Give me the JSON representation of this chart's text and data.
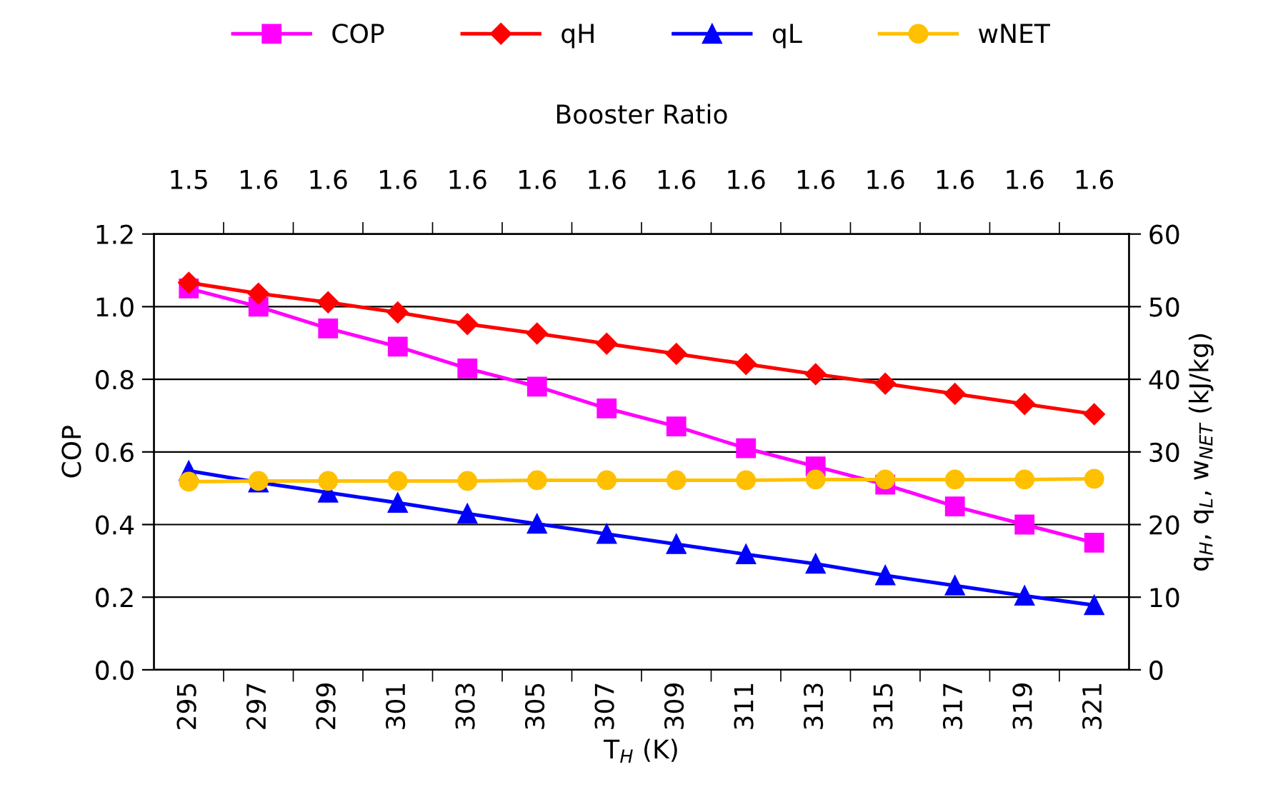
{
  "chart_data": {
    "type": "line",
    "xlabel": "T$_{H}$ (K)",
    "ylabel": "COP",
    "y2label": "q$_{H}$, q$_{L}$, w$_{NET}$ (kJ/kg)",
    "x2label": "Booster Ratio",
    "categories": [
      "295",
      "297",
      "299",
      "301",
      "303",
      "305",
      "307",
      "309",
      "311",
      "313",
      "315",
      "317",
      "319",
      "321"
    ],
    "series": [
      {
        "name": "COP",
        "color": "#ff00ff",
        "marker": "square",
        "values": [
          1.05,
          1.0,
          0.94,
          0.89,
          0.83,
          0.78,
          0.72,
          0.67,
          0.61,
          0.56,
          0.51,
          0.45,
          0.4,
          0.35
        ]
      },
      {
        "name": "qH",
        "color": "#ff0000",
        "marker": "diamond",
        "axis": "y2",
        "values": [
          53.3,
          51.8,
          50.6,
          49.2,
          47.6,
          46.3,
          44.9,
          43.5,
          42.1,
          40.7,
          39.4,
          38.0,
          36.6,
          35.2
        ]
      },
      {
        "name": "qL",
        "color": "#0000ff",
        "marker": "triangle",
        "axis": "y2",
        "values": [
          27.4,
          25.8,
          24.4,
          23.0,
          21.5,
          20.1,
          18.7,
          17.3,
          15.9,
          14.6,
          13.0,
          11.6,
          10.2,
          8.9
        ]
      },
      {
        "name": "wNET",
        "color": "#ffc000",
        "marker": "circle",
        "axis": "y2",
        "values": [
          25.9,
          26.0,
          26.0,
          26.0,
          26.0,
          26.1,
          26.1,
          26.1,
          26.1,
          26.2,
          26.2,
          26.2,
          26.2,
          26.3
        ]
      }
    ],
    "annotations": [
      "1.5",
      "1.6",
      "1.6",
      "1.6",
      "1.6",
      "1.6",
      "1.6",
      "1.6",
      "1.6",
      "1.6",
      "1.6",
      "1.6",
      "1.6",
      "1.6"
    ],
    "ylim": [
      0,
      1.2
    ],
    "yticks": [
      {
        "value": 0,
        "label": "0.0"
      },
      {
        "value": 0.2,
        "label": "0.2"
      },
      {
        "value": 0.4,
        "label": "0.4"
      },
      {
        "value": 0.6,
        "label": "0.6"
      },
      {
        "value": 0.8,
        "label": "0.8"
      },
      {
        "value": 1.0,
        "label": "1.0"
      },
      {
        "value": 1.2,
        "label": "1.2"
      }
    ],
    "y2lim": [
      0,
      60
    ],
    "y2ticks": [
      0,
      10,
      20,
      30,
      40,
      50,
      60
    ],
    "grid": "y",
    "legend": "top",
    "line_style": "solid"
  }
}
